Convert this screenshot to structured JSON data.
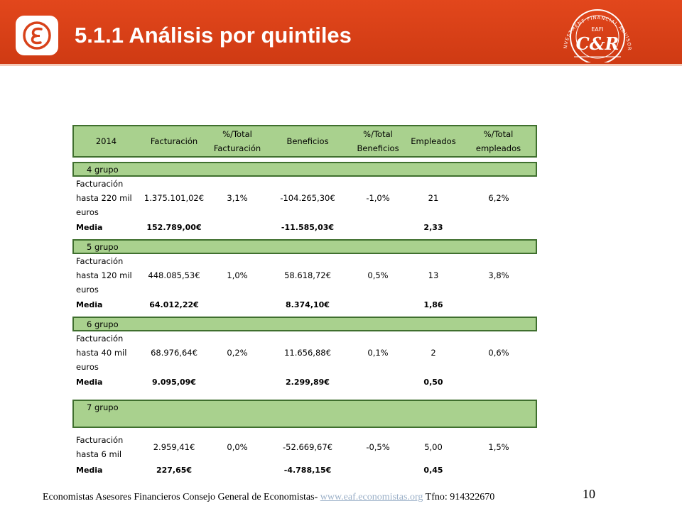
{
  "header": {
    "title": "5.1.1 Análisis por quintiles",
    "accent_color": "#d8421a",
    "left_logo": "epsilon-logo-icon",
    "right_logo": {
      "name": "eafi-cr-logo-icon",
      "arc_text": "INVESTMENT FINANCIAL ADVISOR",
      "top_text": "EAFI",
      "monogram": "C&R"
    }
  },
  "table": {
    "headers": [
      "2014",
      "Facturación",
      "%/Total Facturación",
      "Beneficios",
      "%/Total Beneficios",
      "Empleados",
      "%/Total empleados"
    ],
    "media_label": "Media",
    "groups": [
      {
        "name": "4 grupo",
        "label": "Facturación hasta 220 mil euros",
        "values": [
          "1.375.101,02€",
          "3,1%",
          "-104.265,30€",
          "-1,0%",
          "21",
          "6,2%"
        ],
        "media": {
          "facturacion": "152.789,00€",
          "beneficios": "-11.585,03€",
          "empleados": "2,33"
        }
      },
      {
        "name": "5 grupo",
        "label": "Facturación hasta 120 mil euros",
        "values": [
          "448.085,53€",
          "1,0%",
          "58.618,72€",
          "0,5%",
          "13",
          "3,8%"
        ],
        "media": {
          "facturacion": "64.012,22€",
          "beneficios": "8.374,10€",
          "empleados": "1,86"
        }
      },
      {
        "name": "6 grupo",
        "label": "Facturación hasta 40 mil euros",
        "values": [
          "68.976,64€",
          "0,2%",
          "11.656,88€",
          "0,1%",
          "2",
          "0,6%"
        ],
        "media": {
          "facturacion": "9.095,09€",
          "beneficios": "2.299,89€",
          "empleados": "0,50"
        }
      },
      {
        "name": "7 grupo",
        "label": "Facturación hasta 6 mil",
        "values": [
          "2.959,41€",
          "0,0%",
          "-52.669,67€",
          "-0,5%",
          "5,00",
          "1,5%"
        ],
        "media": {
          "facturacion": "227,65€",
          "beneficios": "-4.788,15€",
          "empleados": "0,45"
        }
      }
    ]
  },
  "footer": {
    "text": "Economistas Asesores Financieros Consejo General de Economistas-",
    "link": "www.eaf.economistas.org",
    "phone": "Tfno: 914322670",
    "page_number": "10"
  }
}
